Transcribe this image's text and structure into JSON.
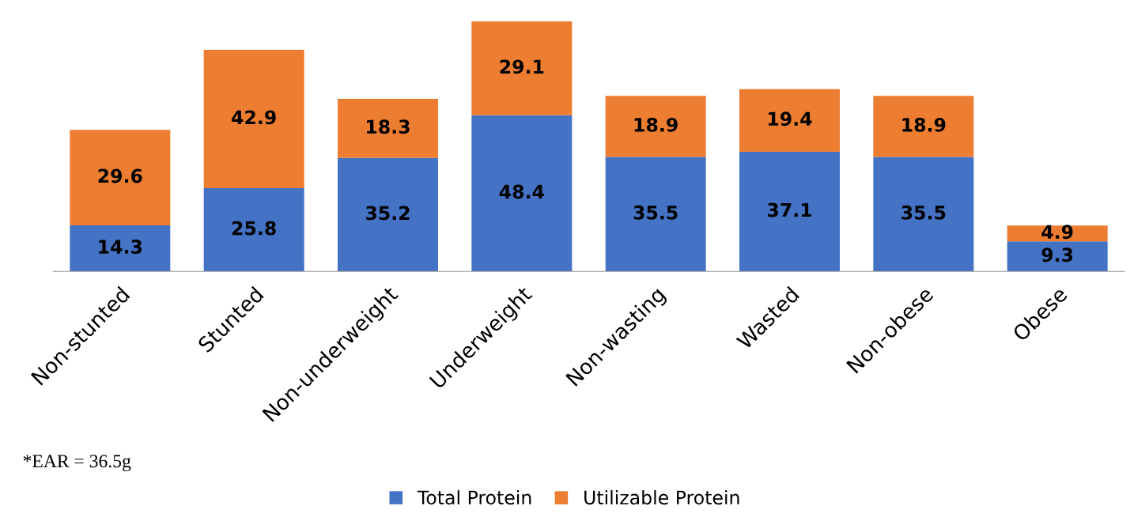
{
  "chart_data": {
    "type": "bar",
    "stacked": true,
    "data_labels": true,
    "tick_labels": "x",
    "grid": false,
    "legend": "bottom",
    "categories": [
      "Non-stunted",
      "Stunted",
      "Non-underweight",
      "Underweight",
      "Non-wasting",
      "Wasted",
      "Non-obese",
      "Obese"
    ],
    "series": [
      {
        "name": "Total Protein",
        "color": "#4472c4",
        "values": [
          14.3,
          25.8,
          35.2,
          48.4,
          35.5,
          37.1,
          35.5,
          9.3
        ]
      },
      {
        "name": "Utilizable Protein",
        "color": "#ed7d31",
        "values": [
          29.6,
          42.9,
          18.3,
          29.1,
          18.9,
          19.4,
          18.9,
          4.9
        ]
      }
    ],
    "annotations": [
      "*EAR = 36.5g"
    ]
  }
}
